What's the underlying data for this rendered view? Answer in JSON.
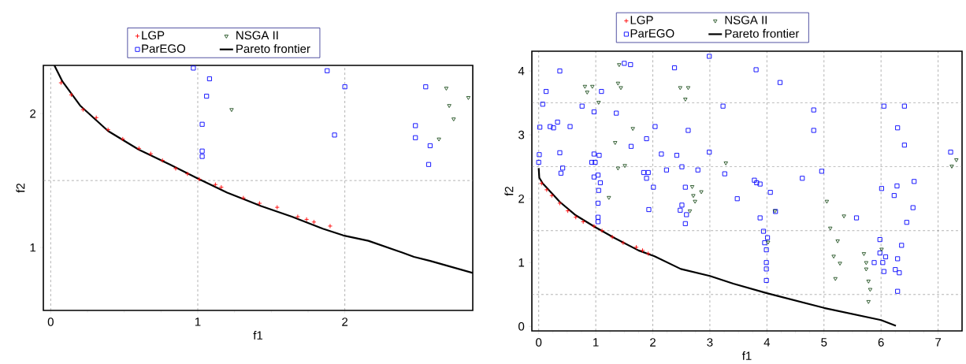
{
  "chart_data": [
    {
      "type": "scatter",
      "xlabel": "f1",
      "ylabel": "f2",
      "xlim": [
        -0.05,
        2.87
      ],
      "ylim": [
        0.53,
        2.36
      ],
      "xticks": [
        0,
        1,
        2
      ],
      "yticks": [
        1,
        2
      ],
      "grid": "x",
      "legend": "top",
      "ref_lines": [
        {
          "axis": "y",
          "value": 1.5,
          "color": "#808080",
          "line_style": "dashed"
        }
      ],
      "series": [
        {
          "name": "LGP",
          "color": "#ff0000",
          "marker": "cross",
          "x": [
            0.07,
            0.14,
            0.22,
            0.31,
            0.39,
            0.49,
            0.6,
            0.68,
            0.76,
            0.85,
            0.93,
            1.01,
            1.12,
            1.16,
            1.31,
            1.42,
            1.54,
            1.68,
            1.74,
            1.79,
            1.9
          ],
          "values": [
            2.23,
            2.14,
            2.03,
            1.97,
            1.88,
            1.81,
            1.74,
            1.7,
            1.65,
            1.59,
            1.55,
            1.51,
            1.47,
            1.45,
            1.37,
            1.33,
            1.3,
            1.23,
            1.21,
            1.19,
            1.16
          ]
        },
        {
          "name": "ParEGO",
          "color": "#0000ff",
          "marker": "square",
          "x": [
            0.97,
            1.08,
            1.06,
            1.03,
            1.03,
            1.03,
            1.88,
            2.0,
            1.93,
            2.55,
            2.48,
            2.48,
            2.58,
            2.57
          ],
          "values": [
            2.34,
            2.26,
            2.13,
            1.92,
            1.72,
            1.68,
            2.32,
            2.2,
            1.84,
            2.2,
            1.91,
            1.82,
            1.76,
            1.62
          ]
        },
        {
          "name": "NSGA II",
          "color": "#1f4f1f",
          "marker": "triangle",
          "x": [
            1.23,
            2.69,
            2.84,
            2.71,
            2.74,
            2.64
          ],
          "values": [
            2.03,
            2.19,
            2.12,
            2.06,
            1.96,
            1.81
          ]
        },
        {
          "name": "Pareto frontier",
          "type": "line",
          "color": "#000000",
          "marker": "none",
          "line_style": "solid",
          "x": [
            0.025,
            0.08,
            0.2,
            0.39,
            0.6,
            0.81,
            1.01,
            1.2,
            1.43,
            1.64,
            1.85,
            1.99,
            2.16,
            2.37,
            2.47,
            2.58,
            2.87
          ],
          "values": [
            2.36,
            2.24,
            2.06,
            1.87,
            1.73,
            1.62,
            1.51,
            1.41,
            1.31,
            1.23,
            1.14,
            1.09,
            1.05,
            0.97,
            0.93,
            0.9,
            0.81
          ]
        }
      ]
    },
    {
      "type": "scatter",
      "xlabel": "f1",
      "ylabel": "f2",
      "xlim": [
        -0.12,
        7.42
      ],
      "ylim": [
        -0.07,
        4.31
      ],
      "xticks": [
        0,
        1,
        2,
        3,
        4,
        5,
        6,
        7
      ],
      "yticks": [
        0,
        1,
        2,
        3,
        4
      ],
      "grid": "x",
      "legend": "top",
      "ref_lines": [
        {
          "axis": "y",
          "value": 0.5,
          "color": "#808080",
          "line_style": "dashed"
        },
        {
          "axis": "y",
          "value": 1.5,
          "color": "#808080",
          "line_style": "dashed"
        },
        {
          "axis": "y",
          "value": 2.5,
          "color": "#808080",
          "line_style": "dashed"
        },
        {
          "axis": "y",
          "value": 3.5,
          "color": "#808080",
          "line_style": "dashed"
        }
      ],
      "series": [
        {
          "name": "LGP",
          "color": "#ff0000",
          "marker": "cross",
          "x": [
            0.05,
            0.14,
            0.23,
            0.37,
            0.51,
            0.65,
            0.78,
            0.97,
            1.11,
            1.29,
            1.48,
            1.71,
            1.82,
            1.92
          ],
          "values": [
            2.24,
            2.14,
            2.05,
            1.93,
            1.81,
            1.71,
            1.64,
            1.57,
            1.5,
            1.4,
            1.31,
            1.24,
            1.19,
            1.14
          ]
        },
        {
          "name": "ParEGO",
          "color": "#0000ff",
          "marker": "square",
          "x": [
            0.01,
            0.0,
            0.02,
            0.07,
            0.13,
            0.37,
            0.2,
            0.26,
            0.33,
            0.55,
            0.37,
            0.39,
            0.42,
            0.76,
            0.97,
            1.1,
            0.97,
            1.06,
            0.93,
            0.99,
            0.97,
            1.04,
            1.08,
            1.05,
            1.04,
            1.04,
            1.04,
            1.5,
            1.61,
            1.36,
            1.62,
            1.89,
            1.84,
            1.92,
            1.89,
            2.01,
            1.93,
            2.04,
            2.15,
            2.24,
            2.38,
            2.42,
            2.51,
            2.57,
            2.51,
            2.48,
            2.59,
            2.57,
            2.62,
            2.79,
            2.99,
            2.99,
            3.23,
            3.26,
            3.81,
            4.23,
            4.82,
            4.82,
            4.96,
            4.62,
            3.78,
            3.82,
            3.88,
            3.48,
            4.06,
            3.88,
            4.15,
            3.94,
            4.01,
            3.96,
            3.99,
            3.99,
            3.99,
            3.99,
            5.57,
            6.05,
            6.41,
            6.29,
            6.41,
            7.22,
            6.01,
            6.28,
            6.23,
            6.58,
            6.56,
            6.45,
            5.98,
            5.98,
            6.08,
            5.88,
            6.03,
            6.05,
            6.36,
            6.29,
            6.25,
            6.32,
            6.29
          ],
          "values": [
            2.69,
            2.57,
            3.12,
            3.48,
            3.68,
            4.0,
            3.13,
            3.11,
            3.2,
            3.13,
            2.72,
            2.4,
            2.48,
            3.45,
            3.36,
            3.68,
            2.7,
            2.68,
            2.57,
            2.57,
            2.34,
            2.37,
            2.25,
            2.13,
            1.93,
            1.71,
            1.64,
            4.12,
            4.1,
            3.34,
            2.82,
            2.94,
            2.41,
            2.41,
            2.32,
            2.18,
            1.83,
            3.13,
            2.7,
            2.45,
            4.05,
            2.68,
            2.5,
            2.18,
            1.9,
            1.82,
            1.75,
            1.61,
            3.07,
            2.45,
            4.23,
            2.73,
            3.45,
            2.39,
            4.02,
            3.82,
            3.39,
            3.07,
            2.43,
            2.32,
            2.29,
            2.25,
            2.23,
            2.0,
            2.1,
            1.7,
            1.8,
            1.49,
            1.39,
            1.31,
            1.2,
            1.0,
            0.9,
            0.72,
            1.7,
            3.45,
            3.45,
            3.11,
            2.84,
            2.73,
            2.16,
            2.2,
            2.05,
            2.27,
            1.86,
            1.63,
            1.36,
            1.15,
            1.09,
            1.0,
            1.0,
            0.86,
            1.27,
            1.06,
            0.89,
            0.84,
            0.55
          ]
        },
        {
          "name": "NSGA II",
          "color": "#1f4f1f",
          "marker": "triangle",
          "x": [
            0.81,
            0.85,
            0.94,
            1.05,
            1.41,
            1.39,
            1.44,
            1.65,
            1.34,
            1.39,
            1.51,
            1.23,
            2.48,
            2.62,
            2.57,
            2.69,
            2.85,
            2.71,
            2.74,
            2.65,
            3.28,
            5.05,
            5.35,
            5.11,
            5.24,
            5.17,
            5.28,
            5.2,
            5.7,
            5.74,
            5.74,
            5.78,
            5.81,
            5.78,
            6.01,
            4.02,
            4.14,
            7.24,
            7.32
          ],
          "values": [
            3.76,
            3.67,
            3.76,
            3.51,
            4.1,
            3.81,
            3.74,
            3.1,
            2.88,
            2.48,
            2.52,
            2.02,
            3.74,
            3.74,
            3.56,
            2.19,
            2.11,
            2.05,
            1.96,
            1.81,
            2.56,
            1.96,
            1.73,
            1.54,
            1.34,
            1.1,
            0.99,
            0.75,
            1.14,
            1.0,
            0.9,
            0.71,
            0.58,
            0.39,
            1.21,
            1.32,
            1.81,
            2.51,
            2.61
          ]
        },
        {
          "name": "Pareto frontier",
          "type": "line",
          "color": "#000000",
          "marker": "none",
          "line_style": "solid",
          "x": [
            0,
            0.01,
            0.07,
            0.37,
            0.65,
            1.0,
            1.34,
            1.75,
            2.03,
            2.49,
            3.0,
            3.41,
            4.0,
            5.0,
            6.0,
            6.26
          ],
          "values": [
            2.48,
            2.33,
            2.24,
            1.95,
            1.74,
            1.55,
            1.38,
            1.19,
            1.1,
            0.9,
            0.79,
            0.67,
            0.52,
            0.29,
            0.1,
            0.01
          ]
        }
      ]
    }
  ]
}
